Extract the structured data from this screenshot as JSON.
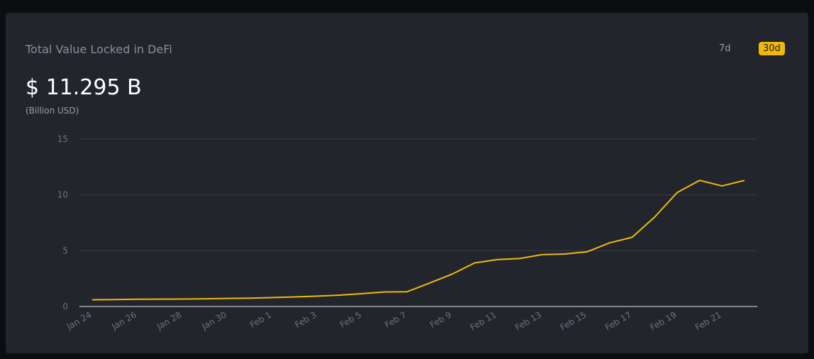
{
  "header": {
    "title": "Total Value Locked in DeFi",
    "value": "$ 11.295 B",
    "unit": "(Billion USD)"
  },
  "buttons": [
    {
      "label": "7d",
      "active": false
    },
    {
      "label": "30d",
      "active": true
    }
  ],
  "chart_data": {
    "type": "line",
    "categories": [
      "Jan 24",
      null,
      "Jan 26",
      null,
      "Jan 28",
      null,
      "Jan 30",
      null,
      "Feb 1",
      null,
      "Feb 3",
      null,
      "Feb 5",
      null,
      "Feb 7",
      null,
      "Feb 9",
      null,
      "Feb 11",
      null,
      "Feb 13",
      null,
      "Feb 15",
      null,
      "Feb 17",
      null,
      "Feb 19",
      null,
      "Feb 21",
      null
    ],
    "series": [
      {
        "name": "TVL",
        "color": "#f0b90b",
        "values": [
          0.6,
          0.62,
          0.65,
          0.66,
          0.67,
          0.69,
          0.72,
          0.75,
          0.8,
          0.86,
          0.93,
          1.02,
          1.15,
          1.3,
          1.32,
          2.1,
          2.9,
          3.9,
          4.2,
          4.3,
          4.65,
          4.7,
          4.9,
          5.7,
          6.2,
          8.0,
          10.2,
          11.3,
          10.8,
          11.295
        ]
      }
    ],
    "ylim": [
      0,
      15
    ],
    "yticks": [
      0,
      5,
      10,
      15
    ],
    "grid": true
  }
}
